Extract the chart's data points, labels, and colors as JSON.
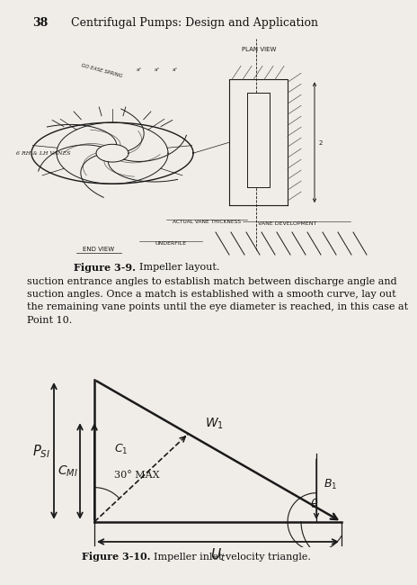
{
  "page_number": "38",
  "header_text": "Centrifugal Pumps: Design and Application",
  "body_text": "suction entrance angles to establish match between discharge angle and\nsuction angles. Once a match is established with a smooth curve, lay out\nthe remaining vane points until the eye diameter is reached, in this case at\nPoint 10.",
  "fig39_caption_bold": "Figure 3-9.",
  "fig39_caption_normal": "  Impeller layout.",
  "fig310_caption_bold": "Figure 3-10.",
  "fig310_caption_normal": "  Impeller inlet velocity triangle.",
  "bg_color": "#f0ede8",
  "line_color": "#1a1a1a",
  "text_color": "#111111"
}
